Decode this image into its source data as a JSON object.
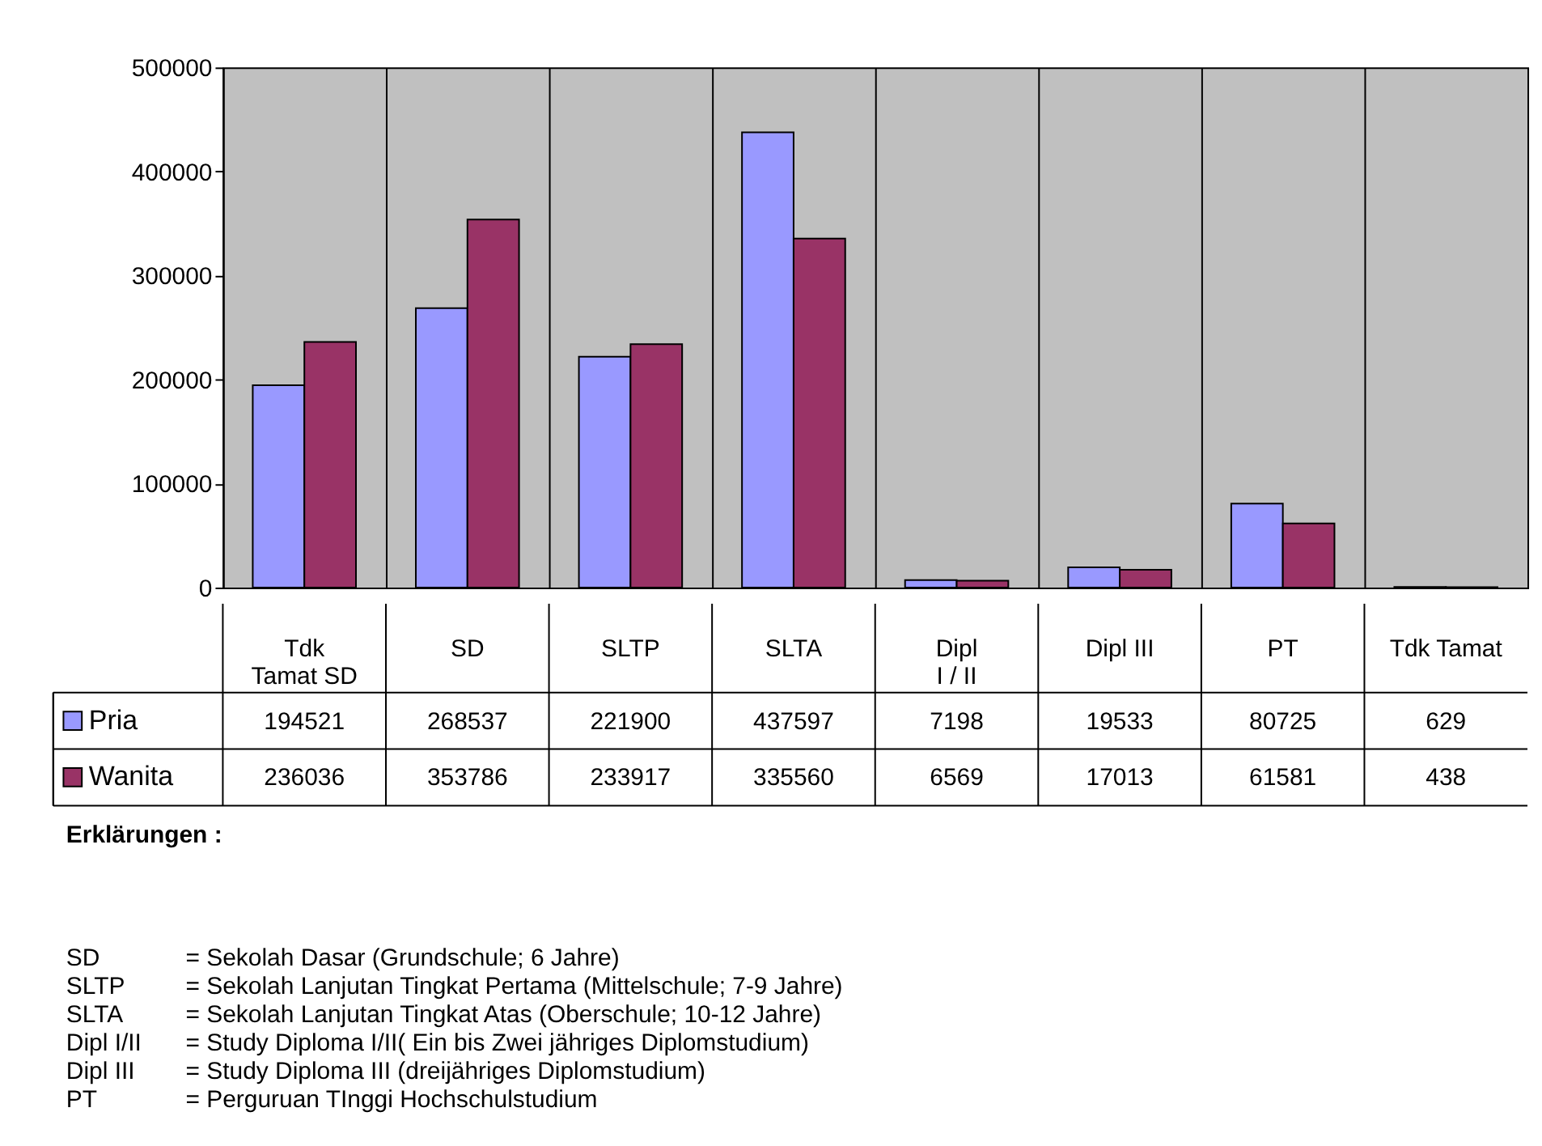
{
  "chart_data": {
    "type": "bar",
    "categories": [
      "Tdk Tamat SD",
      "SD",
      "SLTP",
      "SLTA",
      "Dipl I / II",
      "Dipl III",
      "PT",
      "Tdk Tamat"
    ],
    "series": [
      {
        "name": "Pria",
        "color": "#9999ff",
        "values": [
          194521,
          268537,
          221900,
          437597,
          7198,
          19533,
          80725,
          629
        ]
      },
      {
        "name": "Wanita",
        "color": "#993366",
        "values": [
          236036,
          353786,
          233917,
          335560,
          6569,
          17013,
          61581,
          438
        ]
      }
    ],
    "ylim": [
      0,
      500000
    ],
    "yticks": [
      0,
      100000,
      200000,
      300000,
      400000,
      500000
    ],
    "grid": "x",
    "legend": "bottom left",
    "data_labels": true,
    "annotations": [
      "Erklärungen :",
      "SD = Sekolah Dasar (Grundschule; 6 Jahre)",
      "SLTP = Sekolah Lanjutan Tingkat Pertama (Mittelschule; 7-9 Jahre)",
      "SLTA = Sekolah Lanjutan Tingkat Atas (Oberschule; 10-12 Jahre)",
      "Dipl I/II = Study Diploma I/II( Ein bis Zwei jähriges Diplomstudium)",
      "Dipl III = Study Diploma III (dreijähriges Diplomstudium)",
      "PT = Perguruan TInggi Hochschulstudium"
    ]
  }
}
